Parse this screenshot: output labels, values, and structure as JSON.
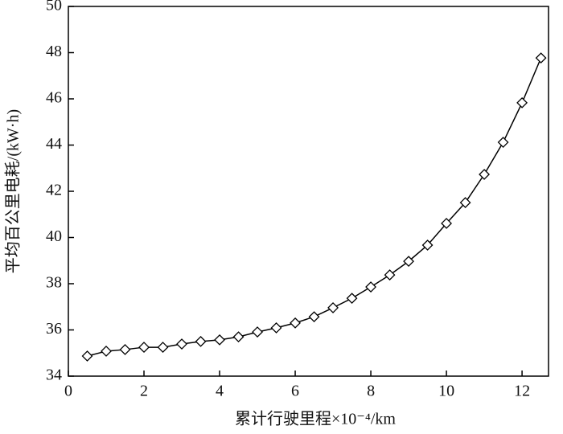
{
  "chart_data": {
    "type": "line",
    "xlabel": "累计行驶里程×10⁻⁴/km",
    "ylabel": "平均百公里电耗/(kW·h)",
    "x": [
      0.5,
      1,
      1.5,
      2,
      2.5,
      3,
      3.5,
      4,
      4.5,
      5,
      5.5,
      6,
      6.5,
      7,
      7.5,
      8,
      8.5,
      9,
      9.5,
      10,
      10.5,
      11,
      11.5,
      12,
      12.5
    ],
    "values": [
      34.87,
      35.08,
      35.15,
      35.25,
      35.25,
      35.39,
      35.5,
      35.57,
      35.7,
      35.91,
      36.09,
      36.3,
      36.57,
      36.96,
      37.37,
      37.86,
      38.38,
      38.97,
      39.67,
      40.61,
      41.51,
      42.73,
      44.12,
      45.83,
      47.77
    ],
    "color": "#000000",
    "marker": "diamond",
    "xlim": [
      0,
      12.7
    ],
    "xticks": [
      0,
      2,
      4,
      6,
      8,
      10,
      12
    ],
    "ylim": [
      34,
      50
    ],
    "yticks": [
      34,
      36,
      38,
      40,
      42,
      44,
      46,
      48,
      50
    ],
    "grid": false
  }
}
